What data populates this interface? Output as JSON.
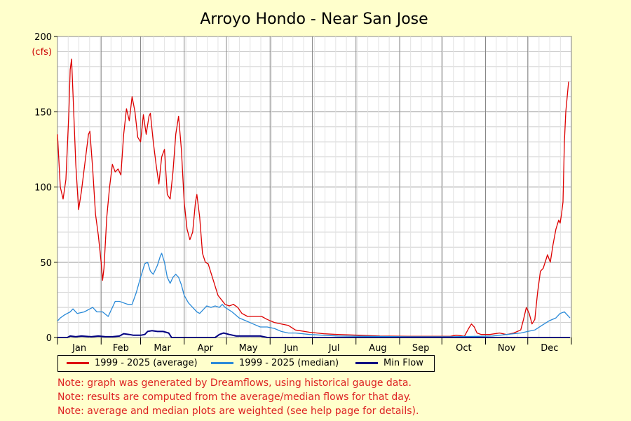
{
  "chart_data": {
    "type": "line",
    "title": "Arroyo Hondo - Near San Jose",
    "y_unit": "(cfs)",
    "ylim": [
      0,
      200
    ],
    "yticks": [
      0,
      50,
      100,
      150,
      200
    ],
    "xlim": [
      1,
      366
    ],
    "month_labels": [
      "Jan",
      "Feb",
      "Mar",
      "Apr",
      "May",
      "Jun",
      "Jul",
      "Aug",
      "Sep",
      "Oct",
      "Nov",
      "Dec"
    ],
    "grid": true,
    "legend_placement": "bottom",
    "series": [
      {
        "name": "1999 - 2025 (average)",
        "color": "#dd0000",
        "points": [
          [
            1,
            135
          ],
          [
            3,
            100
          ],
          [
            5,
            92
          ],
          [
            7,
            105
          ],
          [
            9,
            148
          ],
          [
            10,
            178
          ],
          [
            11,
            185
          ],
          [
            12,
            162
          ],
          [
            14,
            115
          ],
          [
            16,
            85
          ],
          [
            18,
            97
          ],
          [
            21,
            120
          ],
          [
            23,
            135
          ],
          [
            24,
            137
          ],
          [
            26,
            112
          ],
          [
            28,
            82
          ],
          [
            30,
            68
          ],
          [
            32,
            50
          ],
          [
            33,
            38
          ],
          [
            34,
            46
          ],
          [
            36,
            80
          ],
          [
            38,
            100
          ],
          [
            40,
            115
          ],
          [
            42,
            110
          ],
          [
            44,
            112
          ],
          [
            46,
            108
          ],
          [
            48,
            135
          ],
          [
            50,
            152
          ],
          [
            52,
            144
          ],
          [
            54,
            160
          ],
          [
            56,
            150
          ],
          [
            58,
            133
          ],
          [
            60,
            130
          ],
          [
            62,
            148
          ],
          [
            64,
            135
          ],
          [
            66,
            147
          ],
          [
            67,
            149
          ],
          [
            69,
            130
          ],
          [
            71,
            115
          ],
          [
            73,
            102
          ],
          [
            75,
            120
          ],
          [
            77,
            125
          ],
          [
            79,
            95
          ],
          [
            81,
            92
          ],
          [
            83,
            110
          ],
          [
            85,
            135
          ],
          [
            87,
            147
          ],
          [
            89,
            125
          ],
          [
            91,
            90
          ],
          [
            93,
            72
          ],
          [
            95,
            65
          ],
          [
            97,
            70
          ],
          [
            99,
            90
          ],
          [
            100,
            95
          ],
          [
            102,
            80
          ],
          [
            104,
            56
          ],
          [
            106,
            50
          ],
          [
            108,
            49
          ],
          [
            110,
            43
          ],
          [
            112,
            37
          ],
          [
            115,
            28
          ],
          [
            120,
            22
          ],
          [
            123,
            21
          ],
          [
            126,
            22
          ],
          [
            129,
            20
          ],
          [
            132,
            16
          ],
          [
            136,
            14
          ],
          [
            140,
            14
          ],
          [
            146,
            14
          ],
          [
            150,
            12
          ],
          [
            155,
            10
          ],
          [
            160,
            9
          ],
          [
            165,
            8
          ],
          [
            170,
            5
          ],
          [
            180,
            3.5
          ],
          [
            190,
            2.5
          ],
          [
            200,
            2
          ],
          [
            215,
            1.5
          ],
          [
            230,
            1
          ],
          [
            250,
            0.8
          ],
          [
            270,
            0.8
          ],
          [
            280,
            0.8
          ],
          [
            284,
            1.5
          ],
          [
            287,
            1.2
          ],
          [
            290,
            0.8
          ],
          [
            293,
            6
          ],
          [
            295,
            9
          ],
          [
            297,
            7
          ],
          [
            299,
            3
          ],
          [
            302,
            2
          ],
          [
            308,
            2
          ],
          [
            315,
            3
          ],
          [
            320,
            2
          ],
          [
            325,
            3
          ],
          [
            330,
            5
          ],
          [
            332,
            12
          ],
          [
            334,
            20
          ],
          [
            336,
            16
          ],
          [
            338,
            9
          ],
          [
            340,
            12
          ],
          [
            342,
            30
          ],
          [
            344,
            44
          ],
          [
            346,
            46
          ],
          [
            348,
            52
          ],
          [
            349,
            55
          ],
          [
            351,
            50
          ],
          [
            353,
            62
          ],
          [
            355,
            72
          ],
          [
            357,
            78
          ],
          [
            358,
            76
          ],
          [
            359,
            82
          ],
          [
            360,
            90
          ],
          [
            361,
            130
          ],
          [
            362,
            150
          ],
          [
            363,
            160
          ],
          [
            364,
            170
          ]
        ]
      },
      {
        "name": "1999 - 2025 (median)",
        "color": "#2a8ad8",
        "points": [
          [
            1,
            11
          ],
          [
            3,
            13
          ],
          [
            6,
            15
          ],
          [
            10,
            17
          ],
          [
            12,
            19
          ],
          [
            15,
            16
          ],
          [
            20,
            17
          ],
          [
            24,
            19
          ],
          [
            26,
            20
          ],
          [
            29,
            17
          ],
          [
            33,
            17
          ],
          [
            37,
            14
          ],
          [
            40,
            20
          ],
          [
            42,
            24
          ],
          [
            45,
            24
          ],
          [
            48,
            23
          ],
          [
            51,
            22
          ],
          [
            54,
            22
          ],
          [
            57,
            30
          ],
          [
            60,
            40
          ],
          [
            63,
            49
          ],
          [
            65,
            50
          ],
          [
            67,
            44
          ],
          [
            69,
            42
          ],
          [
            72,
            48
          ],
          [
            74,
            54
          ],
          [
            75,
            56
          ],
          [
            77,
            50
          ],
          [
            79,
            40
          ],
          [
            81,
            36
          ],
          [
            83,
            40
          ],
          [
            85,
            42
          ],
          [
            87,
            40
          ],
          [
            89,
            35
          ],
          [
            91,
            28
          ],
          [
            94,
            23
          ],
          [
            97,
            20
          ],
          [
            100,
            17
          ],
          [
            102,
            16
          ],
          [
            105,
            19
          ],
          [
            107,
            21
          ],
          [
            110,
            20
          ],
          [
            113,
            21
          ],
          [
            116,
            20
          ],
          [
            118,
            22
          ],
          [
            120,
            20
          ],
          [
            125,
            17
          ],
          [
            130,
            13
          ],
          [
            135,
            11
          ],
          [
            140,
            9
          ],
          [
            145,
            7
          ],
          [
            150,
            7
          ],
          [
            155,
            6
          ],
          [
            160,
            4
          ],
          [
            165,
            3
          ],
          [
            170,
            3
          ],
          [
            175,
            2.5
          ],
          [
            180,
            2
          ],
          [
            190,
            1.5
          ],
          [
            200,
            1
          ],
          [
            220,
            0.8
          ],
          [
            250,
            0.5
          ],
          [
            280,
            0.5
          ],
          [
            300,
            0.8
          ],
          [
            310,
            1
          ],
          [
            315,
            1.5
          ],
          [
            320,
            2
          ],
          [
            325,
            2.5
          ],
          [
            330,
            3
          ],
          [
            335,
            4
          ],
          [
            340,
            5
          ],
          [
            345,
            8
          ],
          [
            350,
            11
          ],
          [
            355,
            13
          ],
          [
            358,
            16
          ],
          [
            361,
            17
          ],
          [
            363,
            15
          ],
          [
            365,
            13
          ]
        ]
      },
      {
        "name": "Min Flow",
        "color": "#000080",
        "points": [
          [
            1,
            0
          ],
          [
            8,
            0
          ],
          [
            10,
            1
          ],
          [
            14,
            0.5
          ],
          [
            18,
            1
          ],
          [
            25,
            0.5
          ],
          [
            30,
            1
          ],
          [
            35,
            0.5
          ],
          [
            40,
            0.5
          ],
          [
            45,
            1
          ],
          [
            48,
            2.5
          ],
          [
            52,
            2
          ],
          [
            55,
            1.5
          ],
          [
            60,
            1.5
          ],
          [
            63,
            2
          ],
          [
            65,
            4
          ],
          [
            68,
            4.5
          ],
          [
            72,
            4
          ],
          [
            76,
            4
          ],
          [
            80,
            3
          ],
          [
            82,
            0
          ],
          [
            100,
            0
          ],
          [
            113,
            0
          ],
          [
            116,
            2
          ],
          [
            119,
            3
          ],
          [
            123,
            2
          ],
          [
            128,
            1
          ],
          [
            135,
            1
          ],
          [
            145,
            1
          ],
          [
            150,
            0
          ],
          [
            365,
            0
          ]
        ]
      }
    ]
  },
  "legend": {
    "avg_label": "1999 - 2025 (average)",
    "median_label": "1999 - 2025 (median)",
    "min_label": "Min Flow"
  },
  "notes": [
    "Note: graph was generated by Dreamflows, using historical gauge data.",
    "Note: results are computed from the average/median flows for that day.",
    "Note: average and median plots are weighted (see help page for details)."
  ]
}
